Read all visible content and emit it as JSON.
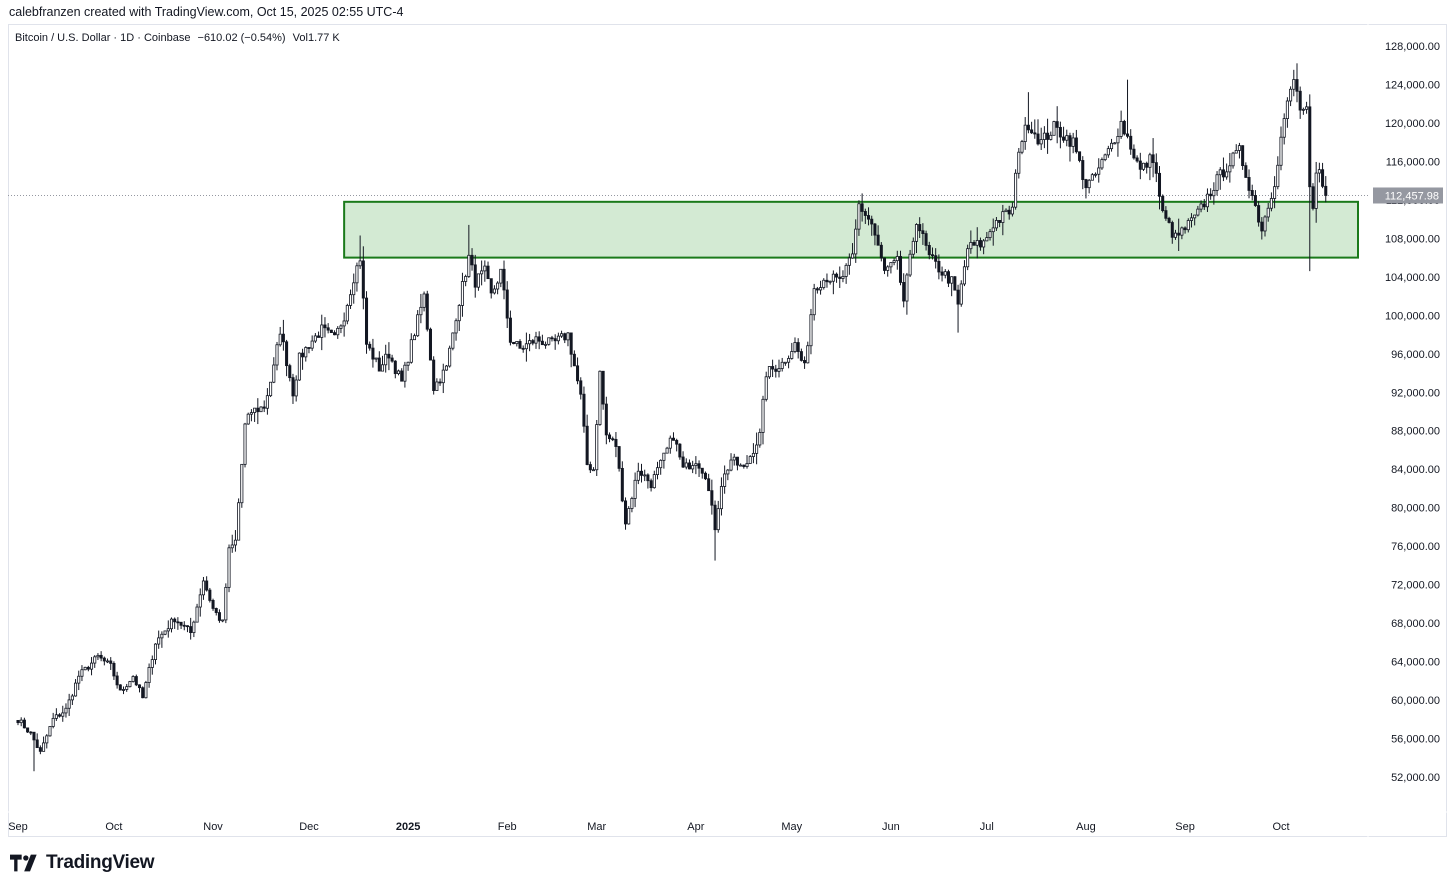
{
  "header": {
    "attribution": "calebfranzen created with TradingView.com, Oct 15, 2025 02:55 UTC-4"
  },
  "legend": {
    "symbol": "Bitcoin / U.S. Dollar · 1D · Coinbase",
    "change": "−610.02 (−0.54%)",
    "volume": "Vol1.77 K"
  },
  "logo": {
    "text": "TradingView",
    "icon": "tradingview-logo-icon"
  },
  "chart_data": {
    "type": "candlestick",
    "title": "",
    "xlabel": "",
    "ylabel": "",
    "ylim": [
      48000,
      130000
    ],
    "y_ticks": [
      52000,
      56000,
      60000,
      64000,
      68000,
      72000,
      76000,
      80000,
      84000,
      88000,
      92000,
      96000,
      100000,
      104000,
      108000,
      112000,
      116000,
      120000,
      124000,
      128000
    ],
    "y_tick_labels": [
      "52,000.00",
      "56,000.00",
      "60,000.00",
      "64,000.00",
      "68,000.00",
      "72,000.00",
      "76,000.00",
      "80,000.00",
      "84,000.00",
      "88,000.00",
      "92,000.00",
      "96,000.00",
      "100,000.00",
      "104,000.00",
      "108,000.00",
      "112,000.00",
      "116,000.00",
      "120,000.00",
      "124,000.00",
      "128,000.00"
    ],
    "x_labels": [
      {
        "date": "2024-09-01",
        "label": "Sep",
        "bold": false
      },
      {
        "date": "2024-10-01",
        "label": "Oct",
        "bold": false
      },
      {
        "date": "2024-11-01",
        "label": "Nov",
        "bold": false
      },
      {
        "date": "2024-12-01",
        "label": "Dec",
        "bold": false
      },
      {
        "date": "2025-01-01",
        "label": "2025",
        "bold": true
      },
      {
        "date": "2025-02-01",
        "label": "Feb",
        "bold": false
      },
      {
        "date": "2025-03-01",
        "label": "Mar",
        "bold": false
      },
      {
        "date": "2025-04-01",
        "label": "Apr",
        "bold": false
      },
      {
        "date": "2025-05-01",
        "label": "May",
        "bold": false
      },
      {
        "date": "2025-06-01",
        "label": "Jun",
        "bold": false
      },
      {
        "date": "2025-07-01",
        "label": "Jul",
        "bold": false
      },
      {
        "date": "2025-08-01",
        "label": "Aug",
        "bold": false
      },
      {
        "date": "2025-09-01",
        "label": "Sep",
        "bold": false
      },
      {
        "date": "2025-10-01",
        "label": "Oct",
        "bold": false
      }
    ],
    "last_price": 112457.98,
    "last_price_label": "112,457.98",
    "zone": {
      "from_date": "2024-12-12",
      "to_date": "2025-11-06",
      "low": 106000,
      "high": 111800,
      "fill": "#d3ead3",
      "stroke": "#1a7a1a"
    },
    "close_series": [
      [
        "2024-09-01",
        58000
      ],
      [
        "2024-09-05",
        56500
      ],
      [
        "2024-09-08",
        54500
      ],
      [
        "2024-09-12",
        58000
      ],
      [
        "2024-09-16",
        59000
      ],
      [
        "2024-09-20",
        62500
      ],
      [
        "2024-09-26",
        64500
      ],
      [
        "2024-09-30",
        63500
      ],
      [
        "2024-10-03",
        60800
      ],
      [
        "2024-10-07",
        62500
      ],
      [
        "2024-10-10",
        60200
      ],
      [
        "2024-10-14",
        66000
      ],
      [
        "2024-10-20",
        68500
      ],
      [
        "2024-10-25",
        67000
      ],
      [
        "2024-10-29",
        72500
      ],
      [
        "2024-11-01",
        69500
      ],
      [
        "2024-11-04",
        68000
      ],
      [
        "2024-11-06",
        75500
      ],
      [
        "2024-11-08",
        76500
      ],
      [
        "2024-11-11",
        88500
      ],
      [
        "2024-11-13",
        90000
      ],
      [
        "2024-11-17",
        90500
      ],
      [
        "2024-11-20",
        94500
      ],
      [
        "2024-11-22",
        98500
      ],
      [
        "2024-11-26",
        92000
      ],
      [
        "2024-11-28",
        95500
      ],
      [
        "2024-12-01",
        97000
      ],
      [
        "2024-12-05",
        98500
      ],
      [
        "2024-12-09",
        97500
      ],
      [
        "2024-12-12",
        100000
      ],
      [
        "2024-12-15",
        104000
      ],
      [
        "2024-12-17",
        106000
      ],
      [
        "2024-12-19",
        97000
      ],
      [
        "2024-12-23",
        94500
      ],
      [
        "2024-12-26",
        96000
      ],
      [
        "2024-12-30",
        93000
      ],
      [
        "2025-01-02",
        97000
      ],
      [
        "2025-01-06",
        102000
      ],
      [
        "2025-01-09",
        92500
      ],
      [
        "2025-01-13",
        94500
      ],
      [
        "2025-01-16",
        100000
      ],
      [
        "2025-01-20",
        106000
      ],
      [
        "2025-01-22",
        103500
      ],
      [
        "2025-01-25",
        104500
      ],
      [
        "2025-01-27",
        102000
      ],
      [
        "2025-01-30",
        104500
      ],
      [
        "2025-02-02",
        97500
      ],
      [
        "2025-02-05",
        96500
      ],
      [
        "2025-02-10",
        97500
      ],
      [
        "2025-02-15",
        97000
      ],
      [
        "2025-02-20",
        98000
      ],
      [
        "2025-02-24",
        91500
      ],
      [
        "2025-02-26",
        84500
      ],
      [
        "2025-02-28",
        84000
      ],
      [
        "2025-03-02",
        94000
      ],
      [
        "2025-03-04",
        87500
      ],
      [
        "2025-03-07",
        86500
      ],
      [
        "2025-03-10",
        78500
      ],
      [
        "2025-03-14",
        84000
      ],
      [
        "2025-03-18",
        82500
      ],
      [
        "2025-03-21",
        84500
      ],
      [
        "2025-03-25",
        87500
      ],
      [
        "2025-03-28",
        84000
      ],
      [
        "2025-04-01",
        85000
      ],
      [
        "2025-04-04",
        83500
      ],
      [
        "2025-04-07",
        78000
      ],
      [
        "2025-04-09",
        82500
      ],
      [
        "2025-04-12",
        85000
      ],
      [
        "2025-04-16",
        84000
      ],
      [
        "2025-04-21",
        87500
      ],
      [
        "2025-04-23",
        94000
      ],
      [
        "2025-04-28",
        95000
      ],
      [
        "2025-05-02",
        97000
      ],
      [
        "2025-05-05",
        94500
      ],
      [
        "2025-05-08",
        103000
      ],
      [
        "2025-05-12",
        104000
      ],
      [
        "2025-05-16",
        103500
      ],
      [
        "2025-05-20",
        106000
      ],
      [
        "2025-05-22",
        111500
      ],
      [
        "2025-05-26",
        109500
      ],
      [
        "2025-05-30",
        104500
      ],
      [
        "2025-06-03",
        105500
      ],
      [
        "2025-06-05",
        101500
      ],
      [
        "2025-06-09",
        110000
      ],
      [
        "2025-06-13",
        106000
      ],
      [
        "2025-06-17",
        104500
      ],
      [
        "2025-06-20",
        103500
      ],
      [
        "2025-06-22",
        101000
      ],
      [
        "2025-06-25",
        107000
      ],
      [
        "2025-06-30",
        107500
      ],
      [
        "2025-07-03",
        109500
      ],
      [
        "2025-07-09",
        111000
      ],
      [
        "2025-07-11",
        117500
      ],
      [
        "2025-07-14",
        120000
      ],
      [
        "2025-07-18",
        118000
      ],
      [
        "2025-07-22",
        119500
      ],
      [
        "2025-07-28",
        118000
      ],
      [
        "2025-08-01",
        113500
      ],
      [
        "2025-08-03",
        114000
      ],
      [
        "2025-08-08",
        117000
      ],
      [
        "2025-08-12",
        120000
      ],
      [
        "2025-08-14",
        118500
      ],
      [
        "2025-08-18",
        115000
      ],
      [
        "2025-08-22",
        116500
      ],
      [
        "2025-08-25",
        110500
      ],
      [
        "2025-08-29",
        108000
      ],
      [
        "2025-09-01",
        109000
      ],
      [
        "2025-09-05",
        110500
      ],
      [
        "2025-09-10",
        113500
      ],
      [
        "2025-09-14",
        115500
      ],
      [
        "2025-09-18",
        117000
      ],
      [
        "2025-09-22",
        112500
      ],
      [
        "2025-09-25",
        109000
      ],
      [
        "2025-09-29",
        114000
      ],
      [
        "2025-10-02",
        120500
      ],
      [
        "2025-10-05",
        124500
      ],
      [
        "2025-10-07",
        121500
      ],
      [
        "2025-10-09",
        121000
      ],
      [
        "2025-10-10",
        113000
      ],
      [
        "2025-10-11",
        110500
      ],
      [
        "2025-10-12",
        114500
      ],
      [
        "2025-10-13",
        115000
      ],
      [
        "2025-10-14",
        113000
      ],
      [
        "2025-10-15",
        112458
      ]
    ],
    "extremes": [
      [
        "2024-09-06",
        52600
      ],
      [
        "2024-12-17",
        108300
      ],
      [
        "2025-01-20",
        109400
      ],
      [
        "2025-04-07",
        74500
      ],
      [
        "2025-05-22",
        111900
      ],
      [
        "2025-06-22",
        98200
      ],
      [
        "2025-07-14",
        123200
      ],
      [
        "2025-08-14",
        124500
      ],
      [
        "2025-10-06",
        126200
      ],
      [
        "2025-10-10",
        104600
      ]
    ]
  }
}
